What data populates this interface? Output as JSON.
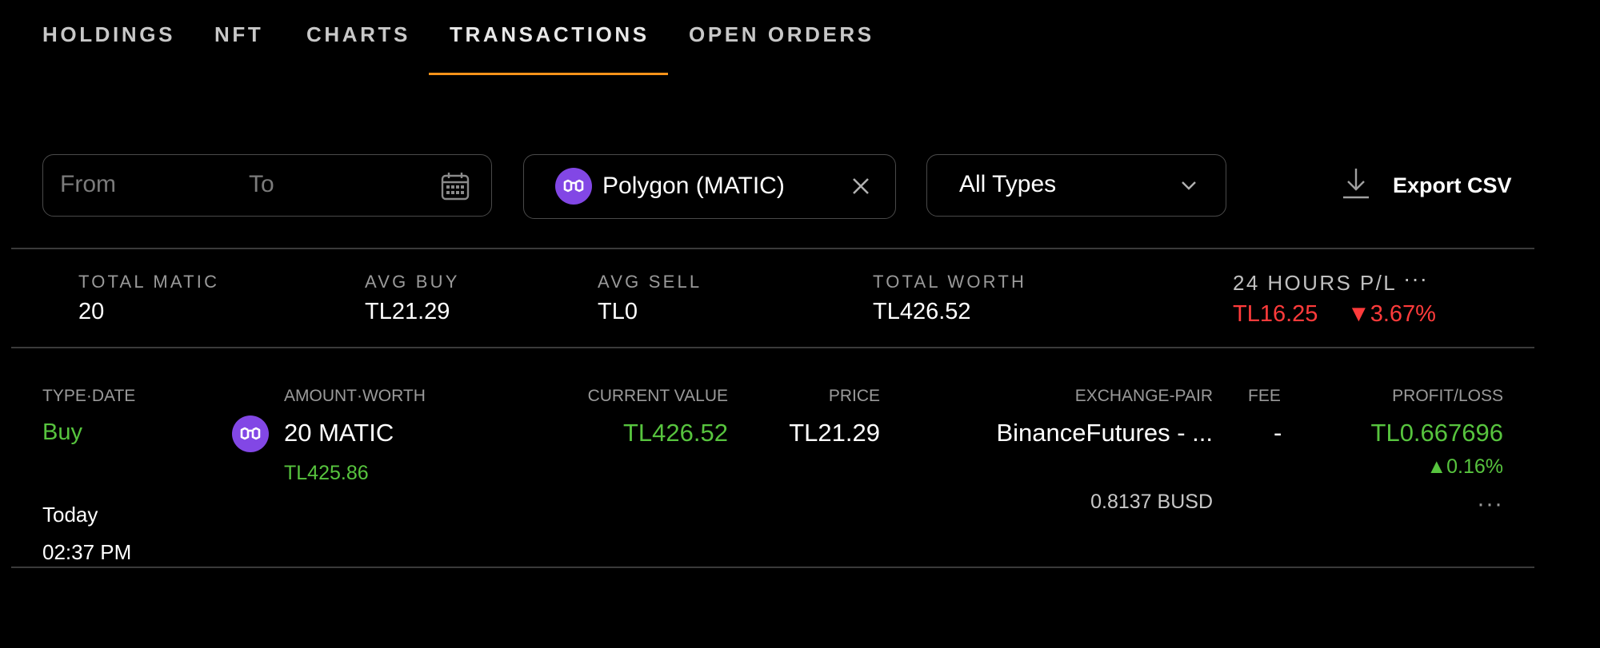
{
  "tabs": [
    {
      "label": "HOLDINGS",
      "active": false
    },
    {
      "label": "NFT",
      "active": false
    },
    {
      "label": "CHARTS",
      "active": false
    },
    {
      "label": "TRANSACTIONS",
      "active": true
    },
    {
      "label": "OPEN ORDERS",
      "active": false
    }
  ],
  "colors": {
    "accent": "#f7931a",
    "positive": "#57c43e",
    "negative": "#ff3b3b",
    "polygon": "#8247e5"
  },
  "filters": {
    "from_placeholder": "From",
    "to_placeholder": "To",
    "calendar_icon": "calendar-icon",
    "coin_label": "Polygon (MATIC)",
    "coin_icon": "polygon-icon",
    "clear_icon": "close-icon",
    "type_label": "All Types",
    "type_icon": "chevron-down-icon",
    "export_label": "Export CSV",
    "export_icon": "download-icon"
  },
  "stats": {
    "total_label": "TOTAL MATIC",
    "total_value": "20",
    "avg_buy_label": "AVG BUY",
    "avg_buy_value": "TL21.29",
    "avg_sell_label": "AVG SELL",
    "avg_sell_value": "TL0",
    "worth_label": "TOTAL WORTH",
    "worth_value": "TL426.52",
    "pl_label": "24 HOURS P/L",
    "pl_more": "···",
    "pl_value": "TL16.25",
    "pl_percent": "▼3.67%"
  },
  "table": {
    "headers": {
      "type_date": "TYPE·DATE",
      "amount_worth": "AMOUNT·WORTH",
      "current_value": "CURRENT VALUE",
      "price": "PRICE",
      "exchange_pair": "EXCHANGE-PAIR",
      "fee": "FEE",
      "profit_loss": "PROFIT/LOSS"
    },
    "rows": [
      {
        "type": "Buy",
        "date": "Today",
        "time": "02:37 PM",
        "amount": "20 MATIC",
        "worth": "TL425.86",
        "current_value": "TL426.52",
        "price": "TL21.29",
        "exchange": "BinanceFutures - ...",
        "pair_price": "0.8137 BUSD",
        "fee": "-",
        "profit": "TL0.667696",
        "profit_percent": "▲0.16%",
        "more": "···"
      }
    ]
  }
}
